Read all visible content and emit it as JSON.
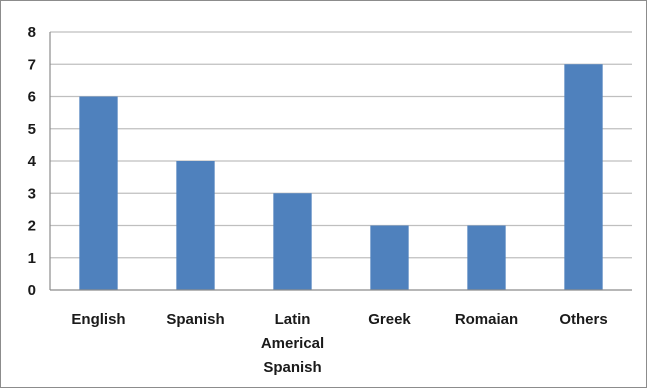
{
  "chart_data": {
    "type": "bar",
    "categories": [
      "English",
      "Spanish",
      "Latin Americal Spanish",
      "Greek",
      "Romaian",
      "Others"
    ],
    "category_lines": [
      [
        "English"
      ],
      [
        "Spanish"
      ],
      [
        "Latin",
        "Americal",
        "Spanish"
      ],
      [
        "Greek"
      ],
      [
        "Romaian"
      ],
      [
        "Others"
      ]
    ],
    "values": [
      6,
      4,
      3,
      2,
      2,
      7
    ],
    "title": "",
    "xlabel": "",
    "ylabel": "",
    "ylim": [
      0,
      8
    ],
    "yticks": [
      "0",
      "1",
      "2",
      "3",
      "4",
      "5",
      "6",
      "7",
      "8"
    ],
    "grid": true,
    "legend": "none",
    "colors": {
      "bar": "#4f81bd",
      "grid": "#bfbfbf",
      "axis": "#8c8c8c"
    }
  }
}
